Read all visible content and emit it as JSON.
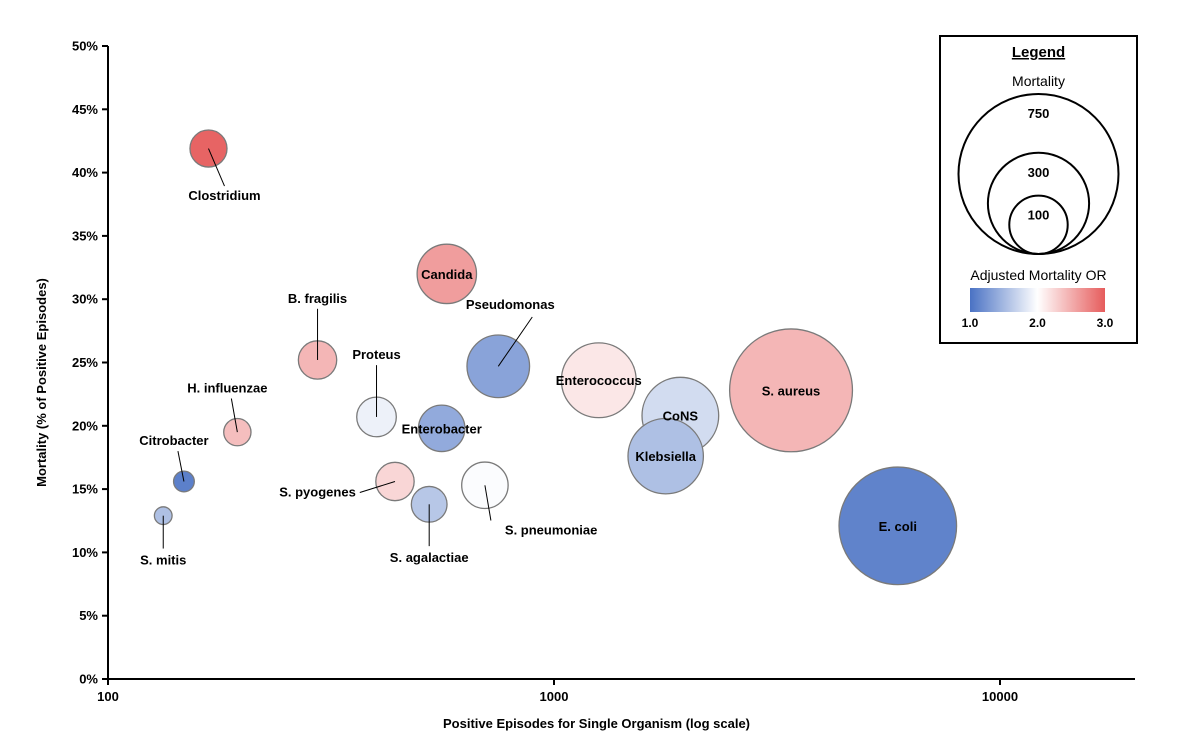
{
  "chart_data": {
    "type": "scatter",
    "subtype": "bubble",
    "xlabel": "Positive Episodes for Single Organism (log scale)",
    "ylabel": "Mortality (% of Positive Episodes)",
    "x_scale": "log",
    "xlim": [
      100,
      20000
    ],
    "ylim": [
      0,
      50
    ],
    "x_ticks": [
      {
        "value": 100,
        "label": "100"
      },
      {
        "value": 1000,
        "label": "1000"
      },
      {
        "value": 10000,
        "label": "10000"
      }
    ],
    "y_ticks": [
      {
        "value": 0,
        "label": "0%"
      },
      {
        "value": 5,
        "label": "5%"
      },
      {
        "value": 10,
        "label": "10%"
      },
      {
        "value": 15,
        "label": "15%"
      },
      {
        "value": 20,
        "label": "20%"
      },
      {
        "value": 25,
        "label": "25%"
      },
      {
        "value": 30,
        "label": "30%"
      },
      {
        "value": 35,
        "label": "35%"
      },
      {
        "value": 40,
        "label": "40%"
      },
      {
        "value": 45,
        "label": "45%"
      },
      {
        "value": 50,
        "label": "50%"
      }
    ],
    "grid": false,
    "bubble_size_meaning": "mortality",
    "color_meaning": "adjusted mortality OR",
    "points": [
      {
        "name": "Clostridium",
        "x": 168,
        "y": 41.9,
        "size": 70,
        "or": 2.95,
        "label_pos": "below-right",
        "leader": true
      },
      {
        "name": "Candida",
        "x": 575,
        "y": 32.0,
        "size": 180,
        "or": 2.6,
        "label_pos": "center",
        "leader": false
      },
      {
        "name": "B. fragilis",
        "x": 295,
        "y": 25.2,
        "size": 75,
        "or": 2.45,
        "label_pos": "above",
        "leader": true
      },
      {
        "name": "Pseudomonas",
        "x": 750,
        "y": 24.7,
        "size": 200,
        "or": 1.35,
        "label_pos": "above-right",
        "leader": true
      },
      {
        "name": "Proteus",
        "x": 400,
        "y": 20.7,
        "size": 80,
        "or": 1.9,
        "label_pos": "above",
        "leader": true
      },
      {
        "name": "H. influenzae",
        "x": 195,
        "y": 19.5,
        "size": 38,
        "or": 2.4,
        "label_pos": "above-left",
        "leader": true
      },
      {
        "name": "Enterobacter",
        "x": 560,
        "y": 19.8,
        "size": 110,
        "or": 1.4,
        "label_pos": "center",
        "leader": false
      },
      {
        "name": "Enterococcus",
        "x": 1260,
        "y": 23.6,
        "size": 285,
        "or": 2.15,
        "label_pos": "center",
        "leader": false
      },
      {
        "name": "CoNS",
        "x": 1920,
        "y": 20.8,
        "size": 300,
        "or": 1.75,
        "label_pos": "center",
        "leader": false
      },
      {
        "name": "Klebsiella",
        "x": 1780,
        "y": 17.6,
        "size": 290,
        "or": 1.55,
        "label_pos": "center",
        "leader": false
      },
      {
        "name": "S. aureus",
        "x": 3400,
        "y": 22.8,
        "size": 770,
        "or": 2.45,
        "label_pos": "center",
        "leader": false
      },
      {
        "name": "E. coli",
        "x": 5900,
        "y": 12.1,
        "size": 705,
        "or": 1.12,
        "label_pos": "center",
        "leader": false
      },
      {
        "name": "Citrobacter",
        "x": 148,
        "y": 15.6,
        "size": 22,
        "or": 1.1,
        "label_pos": "above-left",
        "leader": true
      },
      {
        "name": "S. mitis",
        "x": 133,
        "y": 12.9,
        "size": 16,
        "or": 1.55,
        "label_pos": "below",
        "leader": true
      },
      {
        "name": "S. pyogenes",
        "x": 440,
        "y": 15.6,
        "size": 75,
        "or": 2.25,
        "label_pos": "left",
        "leader": true
      },
      {
        "name": "S. agalactiae",
        "x": 525,
        "y": 13.8,
        "size": 65,
        "or": 1.6,
        "label_pos": "below",
        "leader": true
      },
      {
        "name": "S. pneumoniae",
        "x": 700,
        "y": 15.3,
        "size": 110,
        "or": 1.98,
        "label_pos": "below-right",
        "leader": true
      }
    ],
    "legend": {
      "title": "Legend",
      "size_title": "Mortality",
      "size_items": [
        {
          "value": 750,
          "label": "750"
        },
        {
          "value": 300,
          "label": "300"
        },
        {
          "value": 100,
          "label": "100"
        }
      ],
      "color_title": "Adjusted Mortality OR",
      "color_ticks": [
        {
          "value": 1.0,
          "label": "1.0"
        },
        {
          "value": 2.0,
          "label": "2.0"
        },
        {
          "value": 3.0,
          "label": "3.0"
        }
      ],
      "color_low": "#4a72c4",
      "color_mid": "#ffffff",
      "color_high": "#e65c5c",
      "placement": "top-right"
    }
  }
}
